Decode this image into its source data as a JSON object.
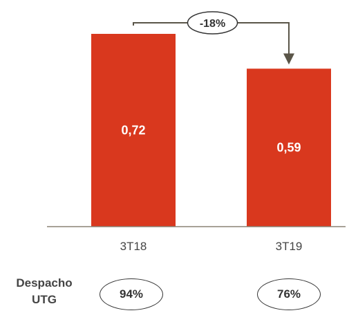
{
  "chart_data": {
    "type": "bar",
    "categories": [
      "3T18",
      "3T19"
    ],
    "values": [
      0.72,
      0.59
    ],
    "value_labels": [
      "0,72",
      "0,59"
    ],
    "ylim": [
      0,
      0.8
    ],
    "grid": false,
    "bar_color": "#D9381E",
    "annotation": {
      "text": "-18%",
      "from": "3T18",
      "to": "3T19"
    },
    "dispatch": {
      "label_line1": "Despacho",
      "label_line2": "UTG",
      "values": [
        "94%",
        "76%"
      ]
    }
  }
}
